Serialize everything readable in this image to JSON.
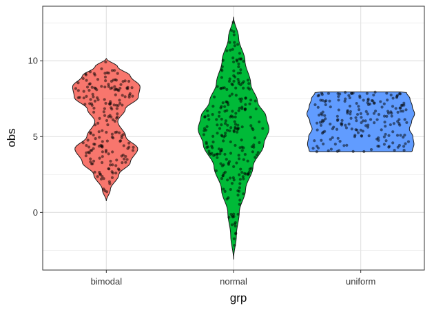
{
  "chart_data": {
    "type": "violin",
    "xlabel": "grp",
    "ylabel": "obs",
    "ylim": [
      -3.8,
      13.6
    ],
    "y_ticks": [
      0,
      5,
      10
    ],
    "y_minor": [
      -2.5,
      2.5,
      7.5,
      12.5
    ],
    "grid": true,
    "legend": "none",
    "groups": [
      {
        "name": "bimodal",
        "color": "#F8766D",
        "range": [
          0.75,
          10.15
        ],
        "density_y": [
          0.75,
          1.5,
          2.5,
          3.3,
          4.2,
          5.0,
          6.0,
          6.8,
          7.6,
          8.3,
          9.0,
          9.6,
          10.15
        ],
        "density_width": [
          0.0,
          0.07,
          0.22,
          0.42,
          0.55,
          0.34,
          0.2,
          0.33,
          0.56,
          0.59,
          0.42,
          0.2,
          0.0
        ],
        "points": 200
      },
      {
        "name": "normal",
        "color": "#00BA38",
        "range": [
          -3.1,
          12.9
        ],
        "density_y": [
          -3.1,
          -1.5,
          0.0,
          1.5,
          3.0,
          4.5,
          5.5,
          6.3,
          7.3,
          8.5,
          10.0,
          11.5,
          12.9
        ],
        "density_width": [
          0.0,
          0.05,
          0.1,
          0.21,
          0.34,
          0.53,
          0.62,
          0.57,
          0.42,
          0.3,
          0.2,
          0.09,
          0.0
        ],
        "points": 250
      },
      {
        "name": "uniform",
        "color": "#619CFF",
        "range": [
          4.0,
          7.95
        ],
        "density_y": [
          4.0,
          4.05,
          4.5,
          5.0,
          5.5,
          6.0,
          6.5,
          7.0,
          7.5,
          7.9,
          7.95
        ],
        "density_width": [
          0.88,
          0.9,
          0.93,
          0.91,
          0.85,
          0.89,
          0.94,
          0.9,
          0.86,
          0.8,
          0.7
        ],
        "points": 200
      }
    ]
  }
}
